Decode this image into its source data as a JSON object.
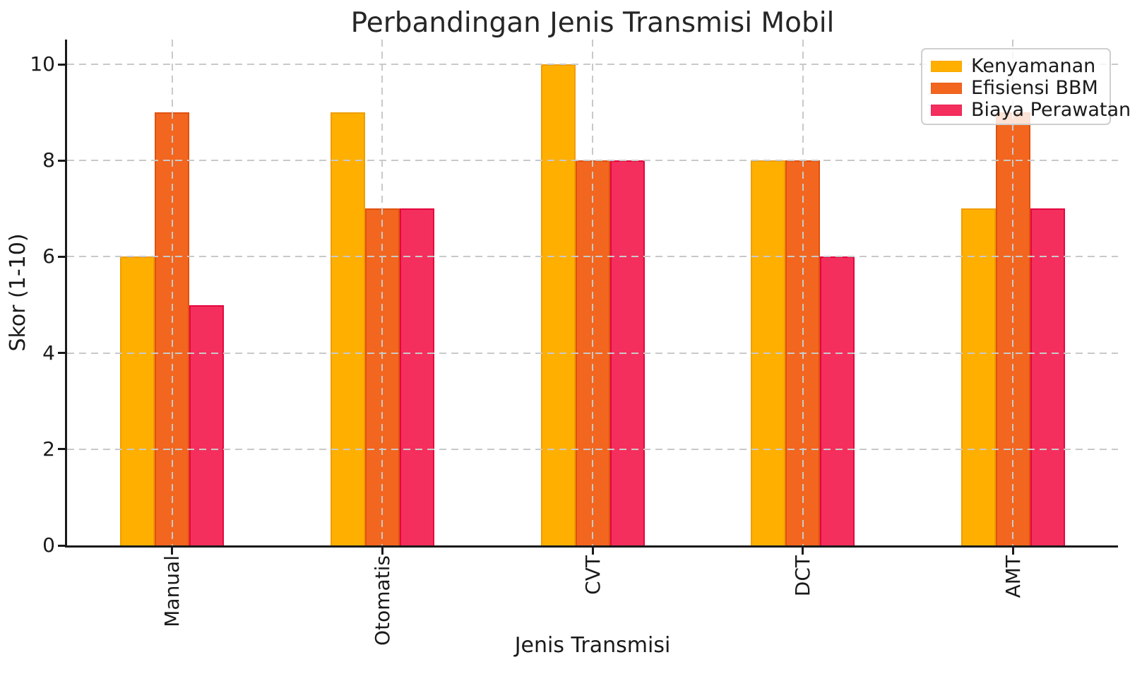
{
  "chart_data": {
    "type": "bar",
    "title": "Perbandingan Jenis Transmisi Mobil",
    "xlabel": "Jenis Transmisi",
    "ylabel": "Skor (1-10)",
    "categories": [
      "Manual",
      "Otomatis",
      "CVT",
      "DCT",
      "AMT"
    ],
    "series": [
      {
        "name": "Kenyamanan",
        "color": "#FFAF00",
        "edge_color": "#F09C00",
        "values": [
          6,
          9,
          10,
          8,
          7
        ]
      },
      {
        "name": "Efisiensi BBM",
        "color": "#F2661F",
        "edge_color": "#E0510E",
        "values": [
          9,
          7,
          8,
          8,
          9
        ]
      },
      {
        "name": "Biaya Perawatan",
        "color": "#F42F5D",
        "edge_color": "#E4073F",
        "values": [
          5,
          7,
          8,
          6,
          7
        ]
      }
    ],
    "yticks": [
      0,
      2,
      4,
      6,
      8,
      10
    ],
    "ylim": [
      0,
      10.5
    ],
    "grid": true,
    "grid_color": "#c9c9c9",
    "grid_style": "dashed",
    "legend_position": "upper right",
    "text_color": "#1a1a1a",
    "background": "#ffffff"
  }
}
